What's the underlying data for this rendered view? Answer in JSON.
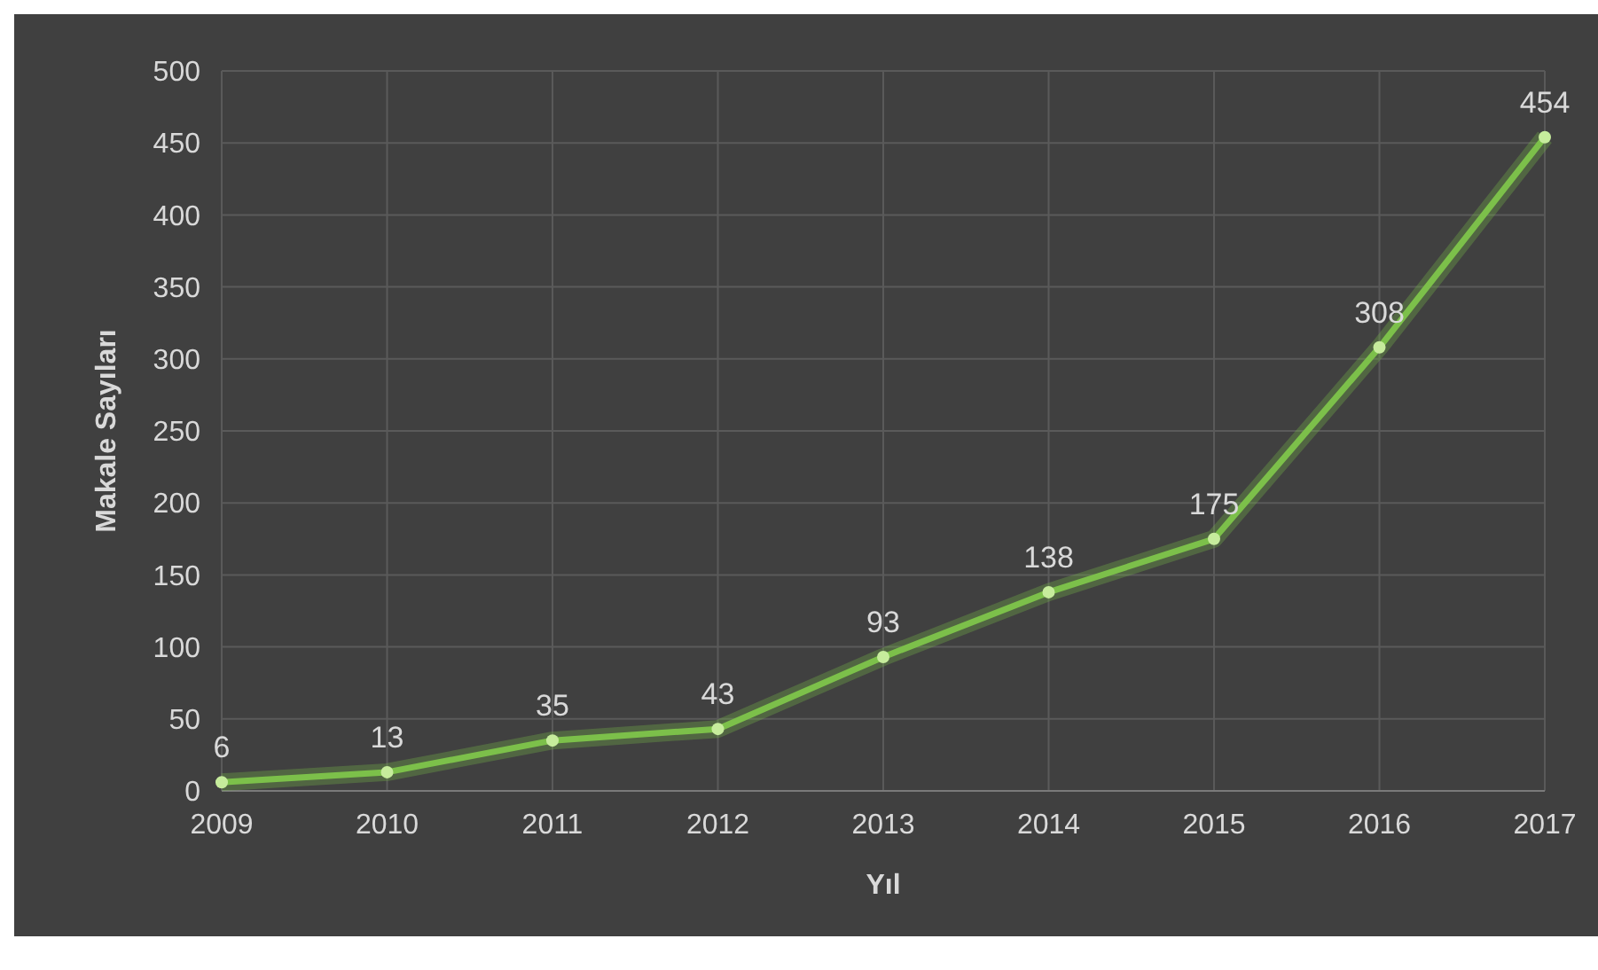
{
  "chart_data": {
    "type": "line",
    "xlabel": "Yıl",
    "ylabel": "Makale Sayıları",
    "categories": [
      "2009",
      "2010",
      "2011",
      "2012",
      "2013",
      "2014",
      "2015",
      "2016",
      "2017"
    ],
    "series": [
      {
        "color": "#7cc04a",
        "values": [
          6,
          13,
          35,
          43,
          93,
          138,
          175,
          308,
          454
        ]
      }
    ],
    "ylim": [
      0,
      500
    ],
    "yticks": [
      0,
      50,
      100,
      150,
      200,
      250,
      300,
      350,
      400,
      450,
      500
    ],
    "grid": true,
    "marker": "circle",
    "line_style": "solid",
    "data_labels": true
  }
}
